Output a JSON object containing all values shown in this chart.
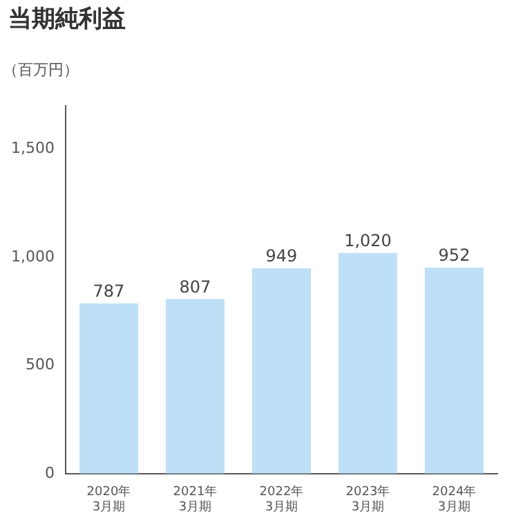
{
  "chart_data": {
    "type": "bar",
    "title": "当期純利益",
    "ylabel": "（百万円）",
    "categories": [
      "2020年\n3月期",
      "2021年\n3月期",
      "2022年\n3月期",
      "2023年\n3月期",
      "2024年\n3月期"
    ],
    "values": [
      787,
      807,
      949,
      1020,
      952
    ],
    "value_labels": [
      "787",
      "807",
      "949",
      "1,020",
      "952"
    ],
    "color": "#bde0f7",
    "ylim": [
      0,
      1700
    ],
    "yticks": [
      0,
      500,
      {
        "value": 1000,
        "label": "1,000"
      },
      {
        "value": 1500,
        "label": "1,500"
      }
    ],
    "grid": false,
    "legend": false
  }
}
